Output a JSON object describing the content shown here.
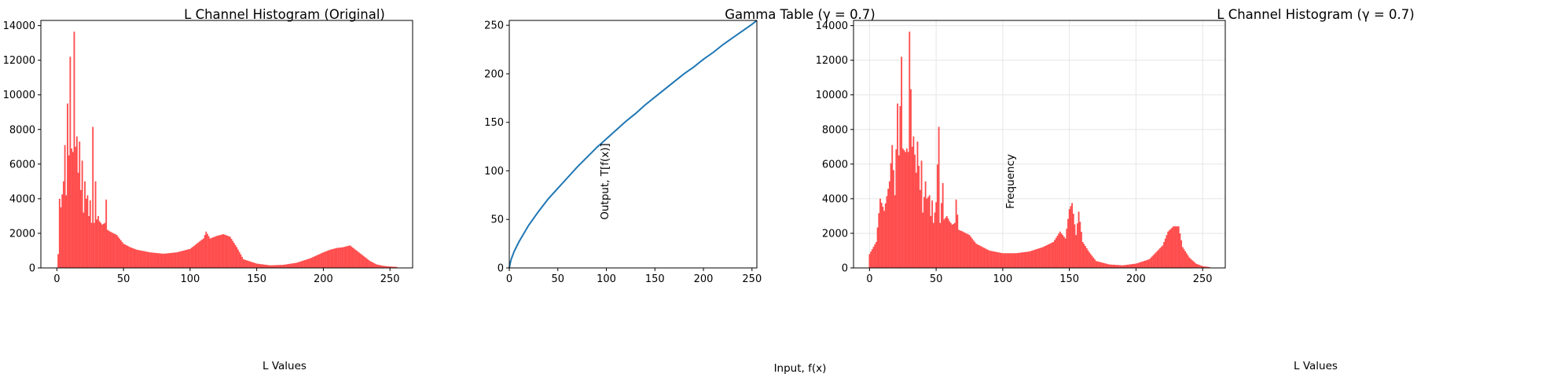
{
  "colors": {
    "histogram": "#ff4d4d",
    "line": "#1f77b4",
    "grid": "#e6e6e6",
    "axis": "#000000"
  },
  "chart_data": [
    {
      "type": "bar",
      "title": "L Channel Histogram (Original)",
      "xlabel": "L Values",
      "ylabel": "",
      "xlim": [
        -12,
        267
      ],
      "ylim": [
        0,
        14300
      ],
      "xticks": [
        0,
        50,
        100,
        150,
        200,
        250
      ],
      "yticks": [
        0,
        2000,
        4000,
        6000,
        8000,
        10000,
        12000,
        14000
      ],
      "grid": false,
      "peaks": [
        {
          "x": 1,
          "y": 800
        },
        {
          "x": 2,
          "y": 4000
        },
        {
          "x": 3,
          "y": 3500
        },
        {
          "x": 5,
          "y": 5000
        },
        {
          "x": 6,
          "y": 7100
        },
        {
          "x": 7,
          "y": 4200
        },
        {
          "x": 8,
          "y": 9500
        },
        {
          "x": 9,
          "y": 6500
        },
        {
          "x": 10,
          "y": 12200
        },
        {
          "x": 11,
          "y": 6900
        },
        {
          "x": 12,
          "y": 6700
        },
        {
          "x": 13,
          "y": 13650
        },
        {
          "x": 14,
          "y": 7000
        },
        {
          "x": 15,
          "y": 7600
        },
        {
          "x": 16,
          "y": 5500
        },
        {
          "x": 17,
          "y": 7300
        },
        {
          "x": 18,
          "y": 4500
        },
        {
          "x": 19,
          "y": 6200
        },
        {
          "x": 20,
          "y": 3200
        },
        {
          "x": 21,
          "y": 5000
        },
        {
          "x": 22,
          "y": 4000
        },
        {
          "x": 23,
          "y": 4200
        },
        {
          "x": 24,
          "y": 3000
        },
        {
          "x": 25,
          "y": 3900
        },
        {
          "x": 26,
          "y": 2600
        },
        {
          "x": 27,
          "y": 8150
        },
        {
          "x": 28,
          "y": 2600
        },
        {
          "x": 29,
          "y": 5000
        },
        {
          "x": 30,
          "y": 2800
        },
        {
          "x": 31,
          "y": 3000
        },
        {
          "x": 32,
          "y": 2700
        },
        {
          "x": 34,
          "y": 2500
        },
        {
          "x": 36,
          "y": 2600
        },
        {
          "x": 37,
          "y": 3950
        },
        {
          "x": 38,
          "y": 2200
        },
        {
          "x": 40,
          "y": 2100
        },
        {
          "x": 45,
          "y": 1900
        },
        {
          "x": 50,
          "y": 1400
        },
        {
          "x": 55,
          "y": 1200
        },
        {
          "x": 60,
          "y": 1050
        },
        {
          "x": 70,
          "y": 900
        },
        {
          "x": 80,
          "y": 820
        },
        {
          "x": 90,
          "y": 900
        },
        {
          "x": 100,
          "y": 1100
        },
        {
          "x": 105,
          "y": 1400
        },
        {
          "x": 110,
          "y": 1700
        },
        {
          "x": 112,
          "y": 2100
        },
        {
          "x": 115,
          "y": 1700
        },
        {
          "x": 120,
          "y": 1850
        },
        {
          "x": 125,
          "y": 1950
        },
        {
          "x": 130,
          "y": 1800
        },
        {
          "x": 135,
          "y": 1200
        },
        {
          "x": 140,
          "y": 500
        },
        {
          "x": 150,
          "y": 250
        },
        {
          "x": 160,
          "y": 150
        },
        {
          "x": 170,
          "y": 180
        },
        {
          "x": 180,
          "y": 300
        },
        {
          "x": 190,
          "y": 550
        },
        {
          "x": 200,
          "y": 900
        },
        {
          "x": 205,
          "y": 1050
        },
        {
          "x": 210,
          "y": 1150
        },
        {
          "x": 215,
          "y": 1200
        },
        {
          "x": 220,
          "y": 1300
        },
        {
          "x": 225,
          "y": 1000
        },
        {
          "x": 230,
          "y": 700
        },
        {
          "x": 235,
          "y": 400
        },
        {
          "x": 240,
          "y": 200
        },
        {
          "x": 245,
          "y": 120
        },
        {
          "x": 250,
          "y": 80
        },
        {
          "x": 255,
          "y": 60
        }
      ]
    },
    {
      "type": "line",
      "title": "Gamma Table (γ = 0.7)",
      "xlabel": "Input, f(x)",
      "ylabel": "Output, T[f(x)]",
      "xlim": [
        0,
        255
      ],
      "ylim": [
        0,
        255
      ],
      "xticks": [
        0,
        50,
        100,
        150,
        200,
        250
      ],
      "yticks": [
        0,
        50,
        100,
        150,
        200,
        250
      ],
      "grid": false,
      "gamma": 0.7,
      "x": [
        0,
        1,
        2,
        5,
        10,
        20,
        30,
        40,
        50,
        60,
        70,
        80,
        90,
        100,
        110,
        120,
        130,
        140,
        150,
        160,
        170,
        180,
        190,
        200,
        210,
        220,
        230,
        240,
        250,
        255
      ],
      "y": [
        0,
        5,
        9,
        17,
        27,
        44,
        58,
        71,
        82,
        93,
        104,
        114,
        124,
        133,
        142,
        151,
        159,
        168,
        176,
        184,
        192,
        200,
        207,
        215,
        222,
        230,
        237,
        244,
        251,
        255
      ]
    },
    {
      "type": "bar",
      "title": "L Channel Histogram (γ = 0.7)",
      "xlabel": "L Values",
      "ylabel": "Frequency",
      "xlim": [
        -12,
        267
      ],
      "ylim": [
        0,
        14300
      ],
      "xticks": [
        0,
        50,
        100,
        150,
        200,
        250
      ],
      "yticks": [
        0,
        2000,
        4000,
        6000,
        8000,
        10000,
        12000,
        14000
      ],
      "grid": true,
      "peaks": [
        {
          "x": 0,
          "y": 800
        },
        {
          "x": 5,
          "y": 1500
        },
        {
          "x": 8,
          "y": 4000
        },
        {
          "x": 11,
          "y": 3300
        },
        {
          "x": 15,
          "y": 5000
        },
        {
          "x": 17,
          "y": 7100
        },
        {
          "x": 19,
          "y": 4200
        },
        {
          "x": 21,
          "y": 9500
        },
        {
          "x": 22,
          "y": 6500
        },
        {
          "x": 24,
          "y": 12200
        },
        {
          "x": 25,
          "y": 6900
        },
        {
          "x": 27,
          "y": 6700
        },
        {
          "x": 28,
          "y": 6900
        },
        {
          "x": 29,
          "y": 6700
        },
        {
          "x": 30,
          "y": 13650
        },
        {
          "x": 32,
          "y": 7000
        },
        {
          "x": 33,
          "y": 7600
        },
        {
          "x": 35,
          "y": 5500
        },
        {
          "x": 36,
          "y": 7300
        },
        {
          "x": 38,
          "y": 4500
        },
        {
          "x": 39,
          "y": 6200
        },
        {
          "x": 40,
          "y": 3200
        },
        {
          "x": 42,
          "y": 5000
        },
        {
          "x": 43,
          "y": 4000
        },
        {
          "x": 45,
          "y": 4200
        },
        {
          "x": 46,
          "y": 3000
        },
        {
          "x": 47,
          "y": 3900
        },
        {
          "x": 48,
          "y": 2600
        },
        {
          "x": 50,
          "y": 3800
        },
        {
          "x": 52,
          "y": 8150
        },
        {
          "x": 53,
          "y": 2600
        },
        {
          "x": 55,
          "y": 4900
        },
        {
          "x": 56,
          "y": 2800
        },
        {
          "x": 58,
          "y": 3000
        },
        {
          "x": 60,
          "y": 2700
        },
        {
          "x": 62,
          "y": 2500
        },
        {
          "x": 64,
          "y": 2600
        },
        {
          "x": 65,
          "y": 3950
        },
        {
          "x": 67,
          "y": 2200
        },
        {
          "x": 70,
          "y": 2100
        },
        {
          "x": 75,
          "y": 1900
        },
        {
          "x": 80,
          "y": 1400
        },
        {
          "x": 85,
          "y": 1200
        },
        {
          "x": 90,
          "y": 1000
        },
        {
          "x": 100,
          "y": 850
        },
        {
          "x": 110,
          "y": 850
        },
        {
          "x": 120,
          "y": 950
        },
        {
          "x": 130,
          "y": 1200
        },
        {
          "x": 138,
          "y": 1500
        },
        {
          "x": 143,
          "y": 2100
        },
        {
          "x": 147,
          "y": 1700
        },
        {
          "x": 150,
          "y": 3400
        },
        {
          "x": 152,
          "y": 3750
        },
        {
          "x": 155,
          "y": 1900
        },
        {
          "x": 157,
          "y": 3250
        },
        {
          "x": 160,
          "y": 1500
        },
        {
          "x": 165,
          "y": 900
        },
        {
          "x": 170,
          "y": 400
        },
        {
          "x": 180,
          "y": 200
        },
        {
          "x": 190,
          "y": 150
        },
        {
          "x": 200,
          "y": 250
        },
        {
          "x": 210,
          "y": 500
        },
        {
          "x": 215,
          "y": 900
        },
        {
          "x": 220,
          "y": 1300
        },
        {
          "x": 224,
          "y": 2100
        },
        {
          "x": 228,
          "y": 2400
        },
        {
          "x": 232,
          "y": 2400
        },
        {
          "x": 235,
          "y": 1200
        },
        {
          "x": 240,
          "y": 600
        },
        {
          "x": 245,
          "y": 250
        },
        {
          "x": 250,
          "y": 100
        },
        {
          "x": 255,
          "y": 50
        }
      ]
    }
  ]
}
